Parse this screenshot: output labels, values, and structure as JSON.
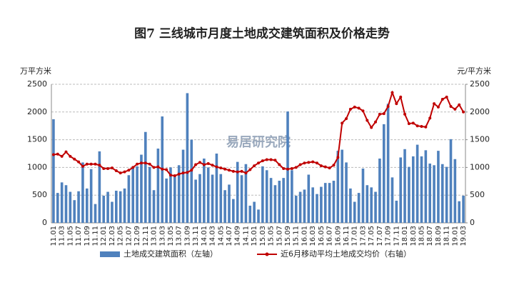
{
  "chart_data": {
    "type": "bar_line",
    "title": "图7  三线城市月度土地成交建筑面积及价格走势",
    "y_label": "万平方米",
    "y2_label": "元/平方米",
    "watermark": "易居研究院",
    "categories": [
      "11.01",
      null,
      "11.03",
      null,
      "11.05",
      null,
      "11.07",
      null,
      "11.09",
      null,
      "11.11",
      null,
      "12.01",
      null,
      "12.03",
      null,
      "12.05",
      null,
      "12.07",
      null,
      "12.09",
      null,
      "12.11",
      null,
      "13.01",
      null,
      "13.03",
      null,
      "13.05",
      null,
      "13.07",
      null,
      "13.09",
      null,
      "13.11",
      null,
      "14.01",
      null,
      "14.03",
      null,
      "14.05",
      null,
      "14.07",
      null,
      "14.09",
      null,
      "14.11",
      null,
      "15.01",
      null,
      "15.03",
      null,
      "15.05",
      null,
      "15.07",
      null,
      "15.09",
      null,
      "15.11",
      null,
      "16.01",
      null,
      "16.03",
      null,
      "16.05",
      null,
      "16.07",
      null,
      "16.09",
      null,
      "16.11",
      null,
      "17.01",
      null,
      "17.03",
      null,
      "17.05",
      null,
      "17.07",
      null,
      "17.09",
      null,
      "17.11",
      null,
      "18.01",
      null,
      "18.03",
      null,
      "18.05",
      null,
      "18.07",
      null,
      "18.09",
      null,
      "18.11",
      null,
      "19.01",
      null,
      "19.03"
    ],
    "series": [
      {
        "name": "土地成交建筑面积（左轴）",
        "color": "#4f81bd",
        "axis": "y",
        "values": [
          1870,
          540,
          730,
          680,
          560,
          410,
          570,
          1090,
          620,
          970,
          340,
          1290,
          490,
          560,
          380,
          580,
          570,
          620,
          860,
          980,
          1020,
          1230,
          1640,
          1010,
          590,
          1340,
          1920,
          800,
          1000,
          860,
          1040,
          1320,
          2340,
          1500,
          780,
          880,
          1160,
          1000,
          870,
          1250,
          880,
          590,
          690,
          430,
          1100,
          860,
          1060,
          310,
          380,
          240,
          1020,
          950,
          810,
          680,
          760,
          810,
          2010,
          950,
          490,
          560,
          600,
          870,
          640,
          520,
          650,
          720,
          720,
          760,
          1300,
          1320,
          1090,
          620,
          380,
          540,
          980,
          680,
          640,
          560,
          1160,
          1780,
          2150,
          820,
          400,
          1180,
          1330,
          1010,
          1200,
          1410,
          1200,
          1310,
          1070,
          1040,
          1300,
          1060,
          1010,
          1510,
          1150,
          390,
          490
        ]
      },
      {
        "name": "近6月移动平均土地成交均价（右轴）",
        "color": "#c00000",
        "axis": "y2",
        "values": [
          1230,
          1240,
          1200,
          1280,
          1200,
          1150,
          1100,
          1020,
          1060,
          1060,
          1060,
          1040,
          980,
          980,
          990,
          940,
          900,
          920,
          950,
          1000,
          1060,
          1080,
          1080,
          1060,
          1000,
          1010,
          970,
          960,
          860,
          850,
          880,
          900,
          910,
          950,
          1050,
          1090,
          1050,
          1070,
          1040,
          1010,
          990,
          970,
          950,
          930,
          920,
          930,
          900,
          960,
          1030,
          1080,
          1120,
          1140,
          1140,
          1130,
          1050,
          980,
          970,
          980,
          1000,
          1050,
          1080,
          1090,
          1100,
          1080,
          1030,
          1010,
          990,
          1040,
          1180,
          1800,
          1880,
          2050,
          2090,
          2070,
          2020,
          1850,
          1720,
          1820,
          1960,
          1970,
          2100,
          2350,
          2150,
          2270,
          1960,
          1790,
          1800,
          1750,
          1740,
          1730,
          1890,
          2150,
          2090,
          2230,
          2270,
          2100,
          2050,
          2130,
          2000
        ]
      }
    ],
    "ylim": [
      0,
      2500
    ],
    "yticks": [
      0,
      500,
      1000,
      1500,
      2000,
      2500
    ],
    "y2lim": [
      0,
      2500
    ],
    "y2ticks": [
      0,
      500,
      1000,
      1500,
      2000,
      2500
    ],
    "grid": true
  }
}
